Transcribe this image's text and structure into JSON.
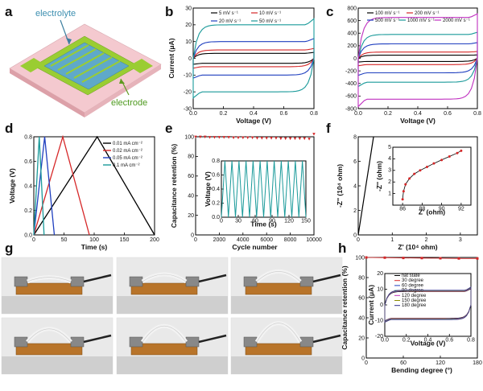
{
  "panels": {
    "a": {
      "label": "a",
      "electrolyte": "electrolyte",
      "electrode": "electrode"
    },
    "b": {
      "label": "b"
    },
    "c": {
      "label": "c"
    },
    "d": {
      "label": "d"
    },
    "e": {
      "label": "e"
    },
    "f": {
      "label": "f"
    },
    "g": {
      "label": "g"
    },
    "h": {
      "label": "h"
    }
  },
  "chart_data": [
    {
      "id": "b",
      "type": "line",
      "xlabel": "Voltage (V)",
      "ylabel": "Current (μA)",
      "xlim": [
        0,
        0.8
      ],
      "ylim": [
        -30,
        30
      ],
      "xticks": [
        "0.0",
        "0.2",
        "0.4",
        "0.6",
        "0.8"
      ],
      "yticks": [
        "30",
        "20",
        "10",
        "0",
        "-10",
        "-20",
        "-30"
      ],
      "legend_position": "top-center",
      "series": [
        {
          "name": "5 mV s⁻¹",
          "color": "#000000",
          "amp": 3
        },
        {
          "name": "10 mV s⁻¹",
          "color": "#d62728",
          "amp": 5
        },
        {
          "name": "20 mV s⁻¹",
          "color": "#1f3fbf",
          "amp": 10
        },
        {
          "name": "50 mV s⁻¹",
          "color": "#1a9a9a",
          "amp": 20
        }
      ]
    },
    {
      "id": "c",
      "type": "line",
      "xlabel": "Voltage (V)",
      "ylabel": "",
      "xlim": [
        0,
        0.8
      ],
      "ylim": [
        -800,
        800
      ],
      "xticks": [
        "0.0",
        "0.2",
        "0.4",
        "0.6",
        "0.8"
      ],
      "yticks": [
        "800",
        "600",
        "400",
        "200",
        "0",
        "-200",
        "-400",
        "-600",
        "-800"
      ],
      "legend_position": "top-center",
      "series": [
        {
          "name": "100 mV s⁻¹",
          "color": "#000000",
          "amp": 50
        },
        {
          "name": "200 mV s⁻¹",
          "color": "#d62728",
          "amp": 100
        },
        {
          "name": "500 mV s⁻¹",
          "color": "#1f3fbf",
          "amp": 230
        },
        {
          "name": "1000 mV s⁻¹",
          "color": "#1a9a9a",
          "amp": 380
        },
        {
          "name": "2000 mV s⁻¹",
          "color": "#c030c0",
          "amp": 650
        }
      ]
    },
    {
      "id": "d",
      "type": "line",
      "xlabel": "Time (s)",
      "ylabel": "Voltage (V)",
      "xlim": [
        0,
        200
      ],
      "ylim": [
        0,
        0.8
      ],
      "xticks": [
        "0",
        "50",
        "100",
        "150",
        "200"
      ],
      "yticks": [
        "0.8",
        "0.6",
        "0.4",
        "0.2",
        "0.0"
      ],
      "legend_position": "top-right",
      "series": [
        {
          "name": "0.01 mA cm⁻²",
          "color": "#000000",
          "charge": [
            0,
            105
          ],
          "discharge": [
            105,
            200
          ]
        },
        {
          "name": "0.02 mA cm⁻²",
          "color": "#d62728",
          "charge": [
            0,
            48
          ],
          "discharge": [
            48,
            92
          ]
        },
        {
          "name": "0.05 mA cm⁻²",
          "color": "#1f3fbf",
          "charge": [
            0,
            18
          ],
          "discharge": [
            18,
            34
          ]
        },
        {
          "name": "0.1 mA cm⁻²",
          "color": "#1a9a9a",
          "charge": [
            0,
            9
          ],
          "discharge": [
            9,
            17
          ]
        }
      ]
    },
    {
      "id": "e",
      "type": "scatter",
      "xlabel": "Cycle number",
      "ylabel": "Capacitance retention (%)",
      "xlim": [
        0,
        10000
      ],
      "ylim": [
        0,
        100
      ],
      "xticks": [
        "0",
        "2000",
        "4000",
        "6000",
        "8000",
        "10000"
      ],
      "yticks": [
        "100",
        "80",
        "60",
        "40",
        "20",
        "0"
      ],
      "retention_start": 100,
      "retention_end": 98,
      "retention_final": 103,
      "inset": {
        "xlabel": "Time (s)",
        "ylabel": "Voltage (V)",
        "xlim": [
          0,
          150
        ],
        "ylim": [
          0,
          0.8
        ],
        "xticks": [
          "0",
          "30",
          "60",
          "90",
          "120",
          "150"
        ],
        "yticks": [
          "0.8",
          "0.6",
          "0.4",
          "0.2",
          "0.0"
        ],
        "cycles": 12,
        "color": "#1a9a9a"
      }
    },
    {
      "id": "f",
      "type": "line",
      "xlabel": "Z' (10⁴ ohm)",
      "ylabel": "-Z'' (10⁴ ohm)",
      "xlim": [
        0,
        3.5
      ],
      "ylim": [
        0,
        8
      ],
      "xticks": [
        "0",
        "1",
        "2",
        "3"
      ],
      "yticks": [
        "8",
        "6",
        "4",
        "2",
        "0"
      ],
      "series": [
        {
          "points": [
            [
              0,
              0
            ],
            [
              0.45,
              8
            ]
          ],
          "color": "#000000"
        }
      ],
      "inset": {
        "xlabel": "Z' (ohm)",
        "ylabel": "-Z'' (ohm)",
        "xlim": [
          85,
          93
        ],
        "ylim": [
          0,
          5
        ],
        "xticks": [
          "86",
          "88",
          "90",
          "92"
        ],
        "yticks": [
          "5",
          "4",
          "3",
          "2",
          "1"
        ],
        "points": [
          [
            86.0,
            0.5
          ],
          [
            86.1,
            1.2
          ],
          [
            86.3,
            1.8
          ],
          [
            86.7,
            2.3
          ],
          [
            87.2,
            2.7
          ],
          [
            87.8,
            3.0
          ],
          [
            88.5,
            3.3
          ],
          [
            89.2,
            3.6
          ],
          [
            90.0,
            3.9
          ],
          [
            90.8,
            4.2
          ],
          [
            91.6,
            4.5
          ],
          [
            92.0,
            4.7
          ]
        ],
        "color": "#d62728"
      }
    },
    {
      "id": "h",
      "type": "scatter",
      "xlabel": "Bending degree (°)",
      "ylabel": "Capacitance retention (%)",
      "xlim": [
        0,
        180
      ],
      "ylim": [
        0,
        100
      ],
      "xticks": [
        "0",
        "60",
        "120",
        "180"
      ],
      "yticks": [
        "100",
        "80",
        "60",
        "40",
        "20",
        "0"
      ],
      "points": [
        [
          0,
          100
        ],
        [
          30,
          99.8
        ],
        [
          60,
          99.5
        ],
        [
          90,
          99.4
        ],
        [
          120,
          99.2
        ],
        [
          150,
          99.0
        ],
        [
          180,
          99.0
        ]
      ],
      "color": "#d62728",
      "inset": {
        "xlabel": "Voltage (V)",
        "ylabel": "Current (μA)",
        "xlim": [
          0,
          0.8
        ],
        "ylim": [
          -20,
          20
        ],
        "xticks": [
          "0.0",
          "0.2",
          "0.4",
          "0.6",
          "0.8"
        ],
        "yticks": [
          "20",
          "10",
          "0",
          "-10",
          "-20"
        ],
        "series": [
          {
            "name": "flat state",
            "color": "#000000"
          },
          {
            "name": "30 degree",
            "color": "#d62728"
          },
          {
            "name": "60 degree",
            "color": "#1f3fbf"
          },
          {
            "name": "90 degree",
            "color": "#1a9a9a"
          },
          {
            "name": "120 degree",
            "color": "#c030c0"
          },
          {
            "name": "150 degree",
            "color": "#8b8b00"
          },
          {
            "name": "180 degree",
            "color": "#2b2b8b"
          }
        ]
      }
    }
  ]
}
